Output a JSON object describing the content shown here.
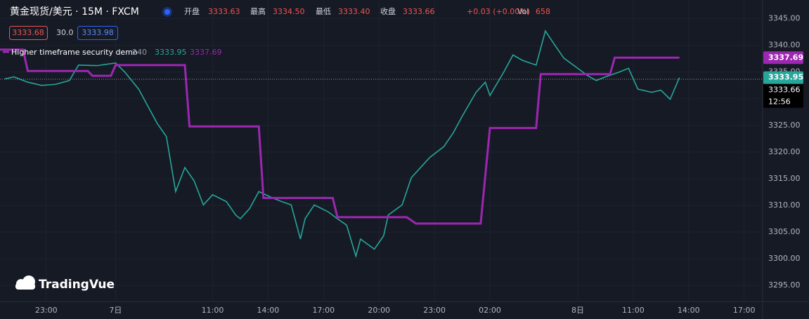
{
  "chart_data": {
    "type": "line",
    "title": "黄金现货/美元 · 15M · FXCM",
    "ohlc": [
      {
        "label": "开盘",
        "value": "3333.63"
      },
      {
        "label": "最高",
        "value": "3334.50"
      },
      {
        "label": "最低",
        "value": "3333.40"
      },
      {
        "label": "收盘",
        "value": "3333.66"
      }
    ],
    "change": "+0.03 (+0.00%)",
    "volume": {
      "label": "Vol",
      "value": 658
    },
    "quote": {
      "bid": "3333.68",
      "spread": "30.0",
      "ask": "3333.98"
    },
    "indicator": {
      "name": "Higher timeframe security demo",
      "param": "240",
      "values": [
        3333.95,
        3337.69
      ]
    },
    "watermark": "TradingVue",
    "series": [
      {
        "color": "#26a69a",
        "x": [
          1,
          3,
          6,
          9,
          12,
          15,
          17,
          21,
          25,
          27,
          30,
          32,
          34,
          36,
          38,
          40,
          42,
          44,
          46,
          49,
          51,
          52,
          54,
          56,
          59,
          61,
          63,
          65,
          66,
          68,
          71,
          73,
          75,
          77,
          78,
          81,
          83,
          84,
          87,
          89,
          91,
          93,
          96,
          98,
          100,
          103,
          105,
          106,
          109,
          111,
          113,
          116,
          118,
          120,
          122,
          125,
          127,
          129,
          131,
          134,
          136,
          138,
          141,
          143,
          145,
          147
        ],
        "values": [
          3333.7,
          3334.1,
          3333.1,
          3332.5,
          3332.7,
          3333.4,
          3336.3,
          3336.2,
          3336.7,
          3335.0,
          3331.8,
          3328.6,
          3325.4,
          3322.9,
          3312.6,
          3317.1,
          3314.6,
          3310.1,
          3312.0,
          3310.7,
          3308.2,
          3307.5,
          3309.4,
          3312.6,
          3311.4,
          3310.7,
          3310.1,
          3303.7,
          3307.5,
          3310.1,
          3308.8,
          3307.5,
          3306.3,
          3300.5,
          3303.7,
          3301.8,
          3304.3,
          3308.2,
          3310.1,
          3315.2,
          3317.1,
          3319.0,
          3321.0,
          3323.5,
          3326.7,
          3331.2,
          3333.1,
          3330.6,
          3335.0,
          3338.2,
          3337.2,
          3336.3,
          3342.7,
          3340.1,
          3337.6,
          3335.7,
          3334.4,
          3333.4,
          3334.1,
          3335.0,
          3335.7,
          3331.8,
          3331.2,
          3331.6,
          3329.9,
          3333.95
        ]
      },
      {
        "color": "#9c27b0",
        "x": [
          0,
          5,
          6,
          19,
          20,
          24,
          25,
          40,
          41,
          56,
          57,
          72,
          73,
          88,
          90,
          104,
          106,
          116,
          117,
          132,
          133,
          147
        ],
        "values": [
          3339.2,
          3339.2,
          3335.2,
          3335.2,
          3334.3,
          3334.3,
          3336.3,
          3336.3,
          3324.8,
          3324.8,
          3311.4,
          3311.4,
          3307.8,
          3307.8,
          3306.6,
          3306.6,
          3324.5,
          3324.5,
          3334.6,
          3334.6,
          3337.69,
          3337.69
        ]
      }
    ],
    "last_price": {
      "value": "3333.66",
      "countdown": "12:56"
    },
    "xlim": [
      0,
      165
    ],
    "xticks": [
      {
        "value": 10,
        "label": "23:00"
      },
      {
        "value": 25,
        "label": "7日"
      },
      {
        "value": 46,
        "label": "11:00"
      },
      {
        "value": 58,
        "label": "14:00"
      },
      {
        "value": 70,
        "label": "17:00"
      },
      {
        "value": 82,
        "label": "20:00"
      },
      {
        "value": 94,
        "label": "23:00"
      },
      {
        "value": 106,
        "label": "02:00"
      },
      {
        "value": 125,
        "label": "8日"
      },
      {
        "value": 137,
        "label": "11:00"
      },
      {
        "value": 149,
        "label": "14:00"
      },
      {
        "value": 161,
        "label": "17:00"
      }
    ],
    "ylim": [
      3292,
      3348.5
    ],
    "yticks": [
      {
        "value": 3295,
        "label": "3295.00"
      },
      {
        "value": 3300,
        "label": "3300.00"
      },
      {
        "value": 3305,
        "label": "3305.00"
      },
      {
        "value": 3310,
        "label": "3310.00"
      },
      {
        "value": 3315,
        "label": "3315.00"
      },
      {
        "value": 3320,
        "label": "3320.00"
      },
      {
        "value": 3325,
        "label": "3325.00"
      },
      {
        "value": 3330,
        "label": "3330.00"
      },
      {
        "value": 3335,
        "label": "3335.00"
      },
      {
        "value": 3340,
        "label": "3340.00"
      },
      {
        "value": 3345,
        "label": "3345.00"
      }
    ],
    "grid": true
  }
}
